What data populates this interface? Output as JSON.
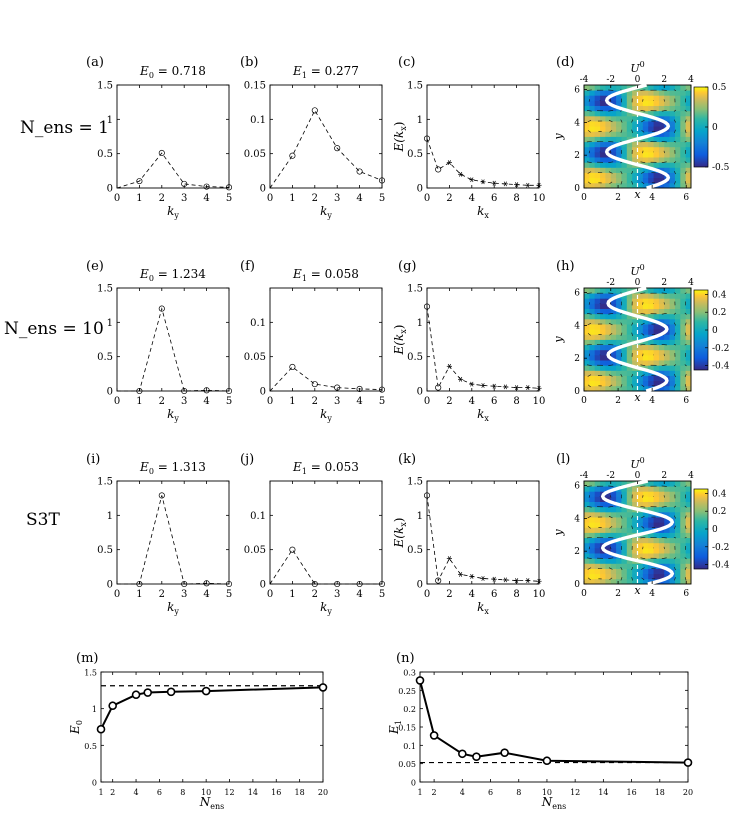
{
  "row_labels": [
    "N_ens = 1",
    "N_ens = 10",
    "S3T"
  ],
  "panel_letters": [
    "(a)",
    "(b)",
    "(c)",
    "(d)",
    "(e)",
    "(f)",
    "(g)",
    "(h)",
    "(i)",
    "(j)",
    "(k)",
    "(l)",
    "(m)",
    "(n)"
  ],
  "chart_data": [
    {
      "id": "a",
      "type": "line",
      "title": "E0 = 0.718",
      "xlabel": "ky",
      "ylabel": "",
      "xlim": [
        0,
        5
      ],
      "ylim": [
        0,
        1.5
      ],
      "xticks": [
        0,
        1,
        2,
        3,
        4,
        5
      ],
      "yticks": [
        0,
        0.5,
        1,
        1.5
      ],
      "ytick_labels": [
        "0",
        "0.5",
        "1",
        "1.5"
      ],
      "x": [
        0,
        1,
        2,
        3,
        4,
        5
      ],
      "y": [
        0,
        0.1,
        0.51,
        0.06,
        0.02,
        0.01
      ],
      "marker": "circle",
      "marker_from_index": 1,
      "line_style": "dashed"
    },
    {
      "id": "b",
      "type": "line",
      "title": "E1 = 0.277",
      "xlabel": "ky",
      "ylabel": "",
      "xlim": [
        0,
        5
      ],
      "ylim": [
        0,
        0.15
      ],
      "xticks": [
        0,
        1,
        2,
        3,
        4,
        5
      ],
      "yticks": [
        0,
        0.05,
        0.1,
        0.15
      ],
      "ytick_labels": [
        "0",
        "0.05",
        "0.1",
        "0.15"
      ],
      "x": [
        0,
        1,
        2,
        3,
        4,
        5
      ],
      "y": [
        0,
        0.047,
        0.113,
        0.058,
        0.024,
        0.011
      ],
      "marker": "circle",
      "marker_from_index": 1,
      "line_style": "dashed"
    },
    {
      "id": "c",
      "type": "line",
      "title": "",
      "xlabel": "kx",
      "ylabel": "E(kx)",
      "xlim": [
        0,
        10
      ],
      "ylim": [
        0,
        1.5
      ],
      "xticks": [
        0,
        2,
        4,
        6,
        8,
        10
      ],
      "yticks": [
        0,
        0.5,
        1,
        1.5
      ],
      "ytick_labels": [
        "0",
        "0.5",
        "1",
        "1.5"
      ],
      "x": [
        0,
        1,
        2,
        3,
        4,
        5,
        6,
        7,
        8,
        9,
        10
      ],
      "y": [
        0.72,
        0.27,
        0.37,
        0.2,
        0.12,
        0.09,
        0.07,
        0.06,
        0.05,
        0.04,
        0.04
      ],
      "marker": "circle-then-star",
      "line_style": "dashed"
    },
    {
      "id": "d",
      "type": "heatmap",
      "title": "U0",
      "xlabel": "x",
      "ylabel": "y",
      "xlim": [
        0,
        6.28
      ],
      "ylim": [
        0,
        6.28
      ],
      "xticks": [
        0,
        2,
        4,
        6
      ],
      "yticks": [
        0,
        2,
        4,
        6
      ],
      "top_ticks": [
        -4,
        -2,
        0,
        2,
        4
      ],
      "top_axis_label": "U0",
      "colorbar": {
        "min": -0.5,
        "max": 0.5,
        "ticks": [
          0.5,
          0,
          -0.5
        ],
        "tick_labels": [
          "0.5",
          "0",
          "-0.5"
        ]
      },
      "jet_profile_period_cycles": 2,
      "jet_amplitude": 2.3
    },
    {
      "id": "e",
      "type": "line",
      "title": "E0 = 1.234",
      "xlabel": "ky",
      "ylabel": "",
      "xlim": [
        0,
        5
      ],
      "ylim": [
        0,
        1.5
      ],
      "xticks": [
        0,
        1,
        2,
        3,
        4,
        5
      ],
      "yticks": [
        0,
        0.5,
        1,
        1.5
      ],
      "ytick_labels": [
        "0",
        "0.5",
        "1",
        "1.5"
      ],
      "x": [
        0,
        1,
        2,
        3,
        4,
        5
      ],
      "y": [
        0,
        0,
        1.2,
        0,
        0.01,
        0
      ],
      "marker": "circle",
      "marker_from_index": 1,
      "line_style": "dashed"
    },
    {
      "id": "f",
      "type": "line",
      "title": "E1 = 0.058",
      "xlabel": "ky",
      "ylabel": "",
      "xlim": [
        0,
        5
      ],
      "ylim": [
        0,
        0.15
      ],
      "xticks": [
        0,
        1,
        2,
        3,
        4,
        5
      ],
      "yticks": [
        0,
        0.05,
        0.1
      ],
      "ytick_labels": [
        "0",
        "0.05",
        "0.1"
      ],
      "x": [
        0,
        1,
        2,
        3,
        4,
        5
      ],
      "y": [
        0,
        0.035,
        0.01,
        0.005,
        0.003,
        0.002
      ],
      "marker": "circle",
      "marker_from_index": 1,
      "line_style": "dashed"
    },
    {
      "id": "g",
      "type": "line",
      "title": "",
      "xlabel": "kx",
      "ylabel": "E(kx)",
      "xlim": [
        0,
        10
      ],
      "ylim": [
        0,
        1.5
      ],
      "xticks": [
        0,
        2,
        4,
        6,
        8,
        10
      ],
      "yticks": [
        0,
        0.5,
        1,
        1.5
      ],
      "ytick_labels": [
        "0",
        "0.5",
        "1",
        "1.5"
      ],
      "x": [
        0,
        1,
        2,
        3,
        4,
        5,
        6,
        7,
        8,
        9,
        10
      ],
      "y": [
        1.23,
        0.05,
        0.36,
        0.17,
        0.1,
        0.08,
        0.07,
        0.06,
        0.05,
        0.05,
        0.04
      ],
      "marker": "circle-then-star",
      "line_style": "dashed"
    },
    {
      "id": "h",
      "type": "heatmap",
      "title": "U0",
      "xlabel": "x",
      "ylabel": "y",
      "xlim": [
        0,
        6.28
      ],
      "ylim": [
        0,
        6.28
      ],
      "xticks": [
        0,
        2,
        4,
        6
      ],
      "yticks": [
        0,
        2,
        4,
        6
      ],
      "top_ticks": [
        -2,
        0,
        2,
        4
      ],
      "top_axis_label": "U0",
      "colorbar": {
        "min": -0.45,
        "max": 0.45,
        "ticks": [
          0.4,
          0.2,
          0,
          -0.2,
          -0.4
        ],
        "tick_labels": [
          "0.4",
          "0.2",
          "0",
          "-0.2",
          "-0.4"
        ]
      },
      "jet_profile_period_cycles": 2,
      "jet_amplitude": 2.2
    },
    {
      "id": "i",
      "type": "line",
      "title": "E0 = 1.313",
      "xlabel": "ky",
      "ylabel": "",
      "xlim": [
        0,
        5
      ],
      "ylim": [
        0,
        1.5
      ],
      "xticks": [
        0,
        1,
        2,
        3,
        4,
        5
      ],
      "yticks": [
        0,
        0.5,
        1,
        1.5
      ],
      "ytick_labels": [
        "0",
        "0.5",
        "1",
        "1.5"
      ],
      "x": [
        0,
        1,
        2,
        3,
        4,
        5
      ],
      "y": [
        0,
        0,
        1.29,
        0,
        0.01,
        0
      ],
      "marker": "circle",
      "marker_from_index": 1,
      "line_style": "dashed"
    },
    {
      "id": "j",
      "type": "line",
      "title": "E1 = 0.053",
      "xlabel": "ky",
      "ylabel": "",
      "xlim": [
        0,
        5
      ],
      "ylim": [
        0,
        0.15
      ],
      "xticks": [
        0,
        1,
        2,
        3,
        4,
        5
      ],
      "yticks": [
        0,
        0.05,
        0.1
      ],
      "ytick_labels": [
        "0",
        "0.05",
        "0.1"
      ],
      "x": [
        0,
        1,
        2,
        3,
        4,
        5
      ],
      "y": [
        0,
        0.05,
        0,
        0,
        0,
        0
      ],
      "marker": "circle",
      "marker_from_index": 1,
      "line_style": "dashed"
    },
    {
      "id": "k",
      "type": "line",
      "title": "",
      "xlabel": "kx",
      "ylabel": "E(kx)",
      "xlim": [
        0,
        10
      ],
      "ylim": [
        0,
        1.5
      ],
      "xticks": [
        0,
        2,
        4,
        6,
        8,
        10
      ],
      "yticks": [
        0,
        0.5,
        1,
        1.5
      ],
      "ytick_labels": [
        "0",
        "0.5",
        "1",
        "1.5"
      ],
      "x": [
        0,
        1,
        2,
        3,
        4,
        5,
        6,
        7,
        8,
        9,
        10
      ],
      "y": [
        1.29,
        0.05,
        0.37,
        0.14,
        0.11,
        0.08,
        0.07,
        0.06,
        0.05,
        0.05,
        0.04
      ],
      "marker": "circle-then-star",
      "line_style": "dashed"
    },
    {
      "id": "l",
      "type": "heatmap",
      "title": "U0",
      "xlabel": "x",
      "ylabel": "y",
      "xlim": [
        0,
        6.28
      ],
      "ylim": [
        0,
        6.28
      ],
      "xticks": [
        0,
        2,
        4,
        6
      ],
      "yticks": [
        0,
        2,
        4,
        6
      ],
      "top_ticks": [
        -4,
        -2,
        0,
        2,
        4
      ],
      "top_axis_label": "U0",
      "colorbar": {
        "min": -0.45,
        "max": 0.45,
        "ticks": [
          0.4,
          0.2,
          0,
          -0.2,
          -0.4
        ],
        "tick_labels": [
          "0.4",
          "0.2",
          "0",
          "-0.2",
          "-0.4"
        ]
      },
      "jet_profile_period_cycles": 2,
      "jet_amplitude": 2.6
    },
    {
      "id": "m",
      "type": "line",
      "title": "",
      "xlabel": "Nens",
      "ylabel": "E0",
      "xlim": [
        1,
        20
      ],
      "ylim": [
        0,
        1.5
      ],
      "xticks": [
        1,
        2,
        4,
        6,
        8,
        10,
        12,
        14,
        16,
        18,
        20
      ],
      "yticks": [
        0,
        0.5,
        1,
        1.5
      ],
      "ytick_labels": [
        "0",
        "0.5",
        "1",
        "1.5"
      ],
      "x": [
        1,
        2,
        4,
        5,
        7,
        10,
        20
      ],
      "y": [
        0.72,
        1.04,
        1.19,
        1.22,
        1.23,
        1.24,
        1.29
      ],
      "marker": "circle",
      "line_style": "solid",
      "reference_line": 1.313
    },
    {
      "id": "n",
      "type": "line",
      "title": "",
      "xlabel": "Nens",
      "ylabel": "E1",
      "xlim": [
        1,
        20
      ],
      "ylim": [
        0,
        0.3
      ],
      "xticks": [
        1,
        2,
        4,
        6,
        8,
        10,
        12,
        14,
        16,
        18,
        20
      ],
      "yticks": [
        0,
        0.05,
        0.1,
        0.15,
        0.2,
        0.25,
        0.3
      ],
      "ytick_labels": [
        "0",
        "0.05",
        "0.1",
        "0.15",
        "0.2",
        "0.25",
        "0.3"
      ],
      "x": [
        1,
        2,
        4,
        5,
        7,
        10,
        20
      ],
      "y": [
        0.277,
        0.127,
        0.077,
        0.069,
        0.08,
        0.058,
        0.053
      ],
      "marker": "circle",
      "line_style": "solid",
      "reference_line": 0.053
    }
  ]
}
